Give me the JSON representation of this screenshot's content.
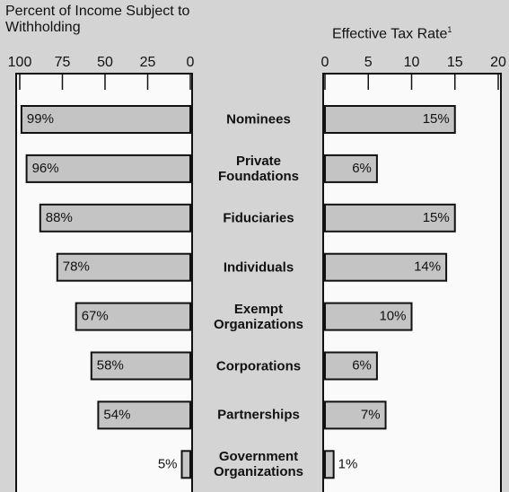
{
  "chart_data": [
    {
      "type": "bar",
      "orientation": "horizontal",
      "xlabel": "Percent of Income Subject to Withholding",
      "categories": [
        "Nominees",
        "Private Foundations",
        "Fiduciaries",
        "Individuals",
        "Exempt Organizations",
        "Corporations",
        "Partnerships",
        "Government Organizations"
      ],
      "values": [
        99,
        96,
        88,
        78,
        67,
        58,
        54,
        5
      ],
      "value_labels": [
        "99%",
        "96%",
        "88%",
        "78%",
        "67%",
        "58%",
        "54%",
        "5%"
      ],
      "color": "#c4c4c4",
      "xlim": [
        100,
        0
      ],
      "xticks": [
        100,
        75,
        50,
        25,
        0
      ]
    },
    {
      "type": "bar",
      "orientation": "horizontal",
      "xlabel": "Effective Tax Rate",
      "xlabel_note": "1",
      "values": [
        15,
        6,
        15,
        14,
        10,
        6,
        7,
        1
      ],
      "value_labels": [
        "15%",
        "6%",
        "15%",
        "14%",
        "10%",
        "6%",
        "7%",
        "1%"
      ],
      "color": "#c4c4c4",
      "xlim": [
        0,
        20
      ],
      "xticks": [
        0,
        5,
        10,
        15,
        20
      ]
    }
  ]
}
